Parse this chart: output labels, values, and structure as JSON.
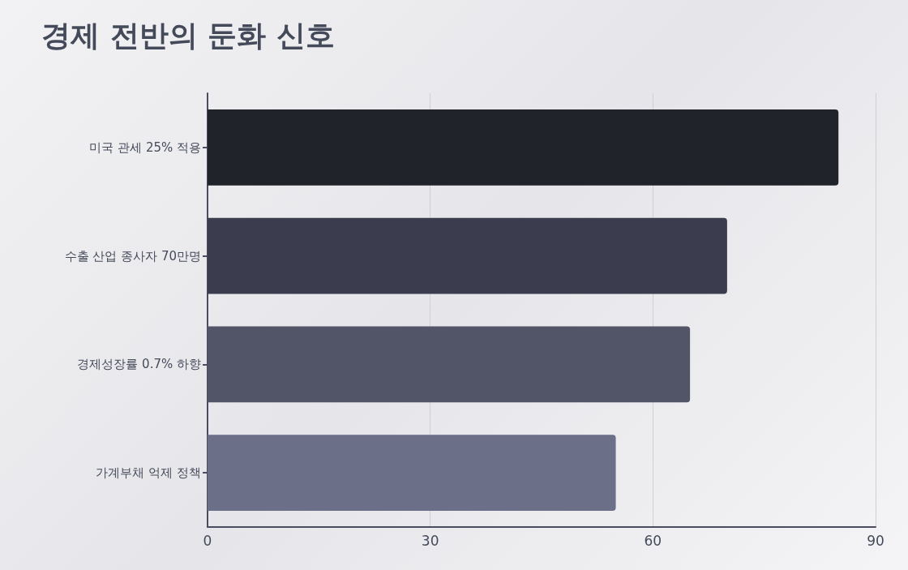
{
  "chart_data": {
    "type": "bar",
    "orientation": "horizontal",
    "title": "경제 전반의 둔화 신호",
    "categories": [
      "미국 관세 25% 적용",
      "수출 산업 종사자 70만명",
      "경제성장률 0.7% 하향",
      "가계부채 억제 정책"
    ],
    "values": [
      85,
      70,
      65,
      55
    ],
    "colors": [
      "#21232b",
      "#3b3d4e",
      "#525468",
      "#6b6f88"
    ],
    "xlim": [
      0,
      90
    ],
    "xticks": [
      0,
      30,
      60,
      90
    ],
    "grid": "x"
  }
}
